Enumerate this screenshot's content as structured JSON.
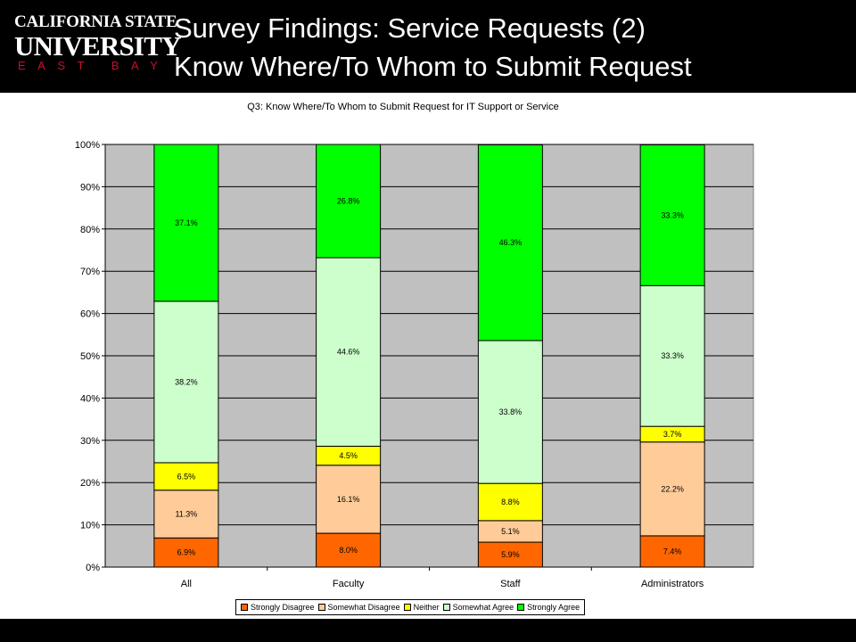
{
  "slide": {
    "title_line1": "Survey Findings: Service Requests (2)",
    "title_line2": "Know Where/To Whom to Submit Request"
  },
  "logo": {
    "line1": "CALIFORNIA STATE",
    "line2": "UNIVERSITY",
    "line3": "EAST BAY"
  },
  "chart_data": {
    "type": "bar",
    "stacked": true,
    "percent": true,
    "title": "Q3: Know Where/To Whom to Submit Request for IT Support or Service",
    "categories": [
      "All",
      "Faculty",
      "Staff",
      "Administrators"
    ],
    "ylim": [
      0,
      100
    ],
    "yticks": [
      "0%",
      "10%",
      "20%",
      "30%",
      "40%",
      "50%",
      "60%",
      "70%",
      "80%",
      "90%",
      "100%"
    ],
    "grid": true,
    "legend_position": "bottom",
    "series": [
      {
        "name": "Strongly Disagree",
        "color": "#ff6600",
        "values": [
          6.9,
          8.0,
          5.9,
          7.4
        ],
        "labels": [
          "6.9%",
          "8.0%",
          "5.9%",
          "7.4%"
        ]
      },
      {
        "name": "Somewhat Disagree",
        "color": "#ffcc99",
        "values": [
          11.3,
          16.1,
          5.1,
          22.2
        ],
        "labels": [
          "11.3%",
          "16.1%",
          "5.1%",
          "22.2%"
        ]
      },
      {
        "name": "Neither",
        "color": "#ffff00",
        "values": [
          6.5,
          4.5,
          8.8,
          3.7
        ],
        "labels": [
          "6.5%",
          "4.5%",
          "8.8%",
          "3.7%"
        ]
      },
      {
        "name": "Somewhat Agree",
        "color": "#ccffcc",
        "values": [
          38.2,
          44.6,
          33.8,
          33.3
        ],
        "labels": [
          "38.2%",
          "44.6%",
          "33.8%",
          "33.3%"
        ]
      },
      {
        "name": "Strongly Agree",
        "color": "#00ff00",
        "values": [
          37.1,
          26.8,
          46.3,
          33.3
        ],
        "labels": [
          "37.1%",
          "26.8%",
          "46.3%",
          "33.3%"
        ]
      }
    ],
    "plot_background": "#c0c0c0"
  }
}
